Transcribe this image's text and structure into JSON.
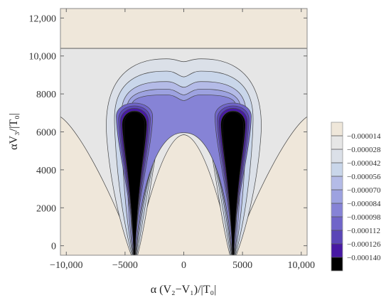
{
  "chart_data": {
    "type": "heatmap",
    "subtype": "contour",
    "title": "",
    "xlabel": "α (V₂−V₁)/|T₀|",
    "ylabel": "αV₃/|T₀|",
    "xlim": [
      -10500,
      10500
    ],
    "ylim": [
      -500,
      12500
    ],
    "xticks": [
      -10000,
      -5000,
      0,
      5000,
      10000
    ],
    "xtick_labels": [
      "−10,000",
      "−5000",
      "0",
      "5000",
      "10,000"
    ],
    "yticks": [
      0,
      2000,
      4000,
      6000,
      8000,
      10000,
      12000
    ],
    "ytick_labels": [
      "0",
      "2000",
      "4000",
      "6000",
      "8000",
      "10,000",
      "12,000"
    ],
    "wells_x": [
      -4200,
      4200
    ],
    "legend": {
      "placement": "right",
      "levels": [
        "−0.000014",
        "−0.000028",
        "−0.000042",
        "−0.000056",
        "−0.000070",
        "−0.000084",
        "−0.000098",
        "−0.000112",
        "−0.000126",
        "−0.000140"
      ],
      "colors": [
        "#efe7da",
        "#e6e6e6",
        "#dbe0e8",
        "#c9d6ea",
        "#b4bbe7",
        "#9da2e0",
        "#8683d6",
        "#7065c9",
        "#5a46b7",
        "#4719a3",
        "#000000"
      ]
    },
    "background_color": "#efe7da",
    "grid": false
  }
}
